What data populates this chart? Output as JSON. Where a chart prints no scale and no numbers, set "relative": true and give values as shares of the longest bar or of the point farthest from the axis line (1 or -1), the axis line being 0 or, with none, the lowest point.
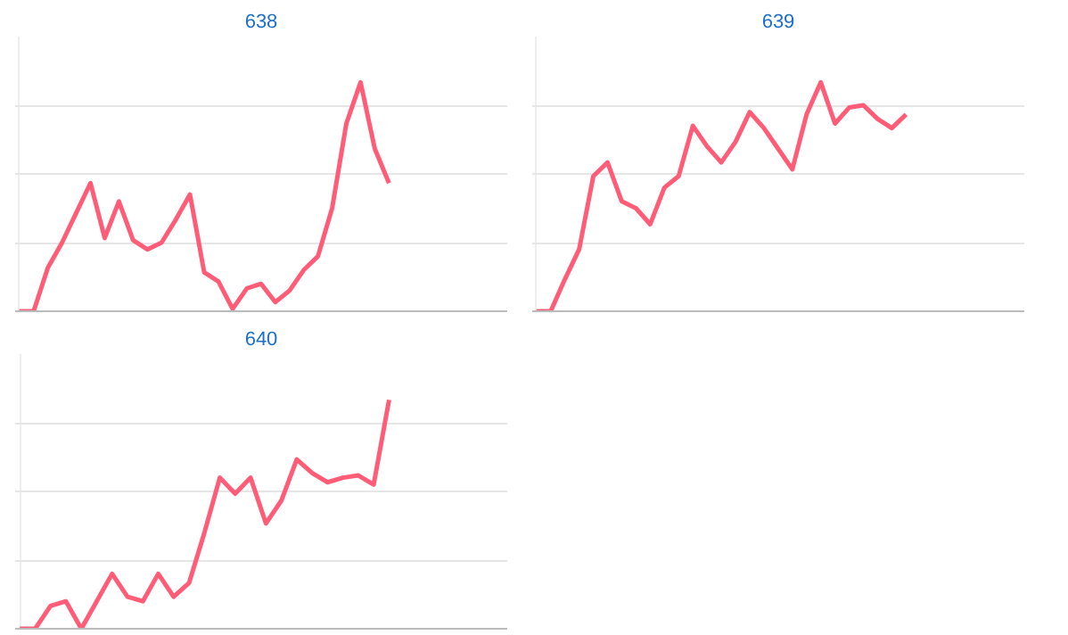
{
  "chart_data": [
    {
      "type": "line",
      "title": "638",
      "relative": true,
      "grid": "y",
      "categories": [
        null,
        null,
        null,
        null,
        null,
        null,
        null,
        null,
        null,
        null,
        null,
        null,
        null,
        null,
        null,
        null,
        null,
        null,
        null,
        null,
        null,
        null,
        null,
        null,
        null,
        null,
        null
      ],
      "series": [
        {
          "color": "#ff5c77",
          "values": [
            0,
            0,
            0.19,
            0.3,
            0.43,
            0.56,
            0.32,
            0.48,
            0.31,
            0.27,
            0.3,
            0.4,
            0.51,
            0.17,
            0.13,
            0.01,
            0.1,
            0.12,
            0.04,
            0.09,
            0.18,
            0.24,
            0.45,
            0.82,
            1,
            0.71,
            0.56
          ]
        }
      ]
    },
    {
      "type": "line",
      "title": "639",
      "relative": true,
      "grid": "y",
      "categories": [
        null,
        null,
        null,
        null,
        null,
        null,
        null,
        null,
        null,
        null,
        null,
        null,
        null,
        null,
        null,
        null,
        null,
        null,
        null,
        null,
        null,
        null,
        null,
        null,
        null,
        null,
        null
      ],
      "series": [
        {
          "color": "#ff5c77",
          "values": [
            0,
            0,
            0.14,
            0.27,
            0.59,
            0.65,
            0.48,
            0.45,
            0.38,
            0.54,
            0.59,
            0.81,
            0.72,
            0.65,
            0.74,
            0.87,
            0.8,
            0.71,
            0.62,
            0.86,
            1,
            0.82,
            0.89,
            0.9,
            0.84,
            0.8,
            0.86
          ]
        }
      ]
    },
    {
      "type": "line",
      "title": "640",
      "relative": true,
      "grid": "y",
      "categories": [
        null,
        null,
        null,
        null,
        null,
        null,
        null,
        null,
        null,
        null,
        null,
        null,
        null,
        null,
        null,
        null,
        null,
        null,
        null,
        null,
        null,
        null,
        null,
        null,
        null
      ],
      "series": [
        {
          "color": "#ff5c77",
          "values": [
            0,
            0,
            0.1,
            0.12,
            0,
            0.12,
            0.24,
            0.14,
            0.12,
            0.24,
            0.14,
            0.2,
            0.42,
            0.66,
            0.59,
            0.66,
            0.46,
            0.56,
            0.74,
            0.68,
            0.64,
            0.66,
            0.67,
            0.63,
            1
          ]
        }
      ]
    }
  ]
}
